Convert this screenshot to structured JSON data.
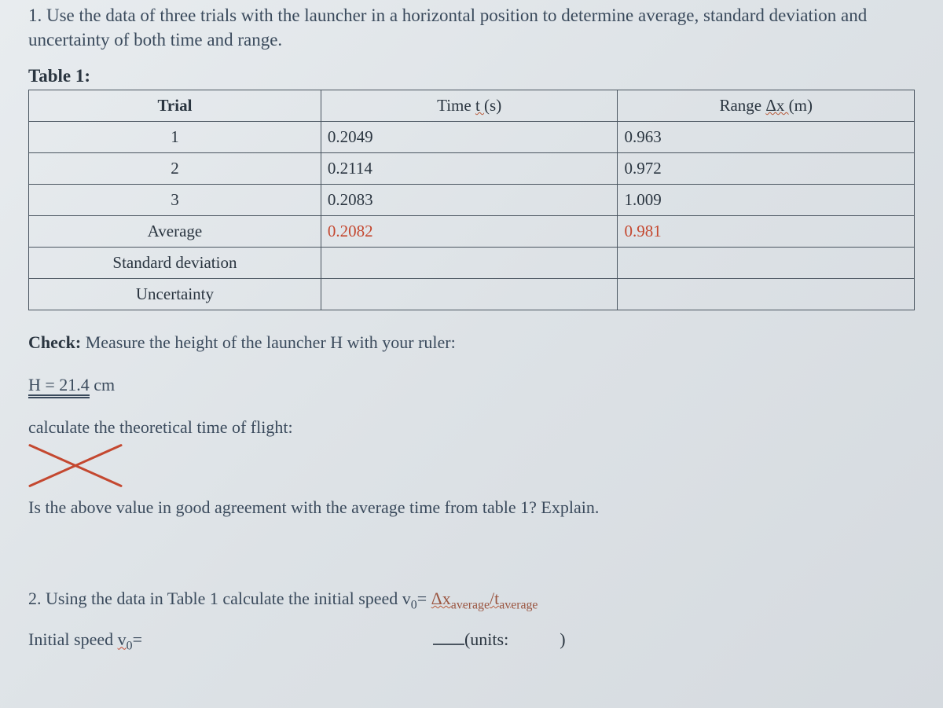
{
  "question1": "1. Use the data of three trials with the launcher in a horizontal position to determine average, standard deviation and uncertainty of both time and range.",
  "table": {
    "label": "Table 1:",
    "columns": {
      "trial": "Trial",
      "time_prefix": "Time ",
      "time_var": "t ",
      "time_unit": "(s)",
      "range_prefix": "Range ",
      "range_var": "Δx ",
      "range_unit": "(m)"
    },
    "rows": [
      {
        "label": "1",
        "time": "0.2049",
        "range": "0.963",
        "time_red": false,
        "range_red": false
      },
      {
        "label": "2",
        "time": "0.2114",
        "range": "0.972",
        "time_red": false,
        "range_red": false
      },
      {
        "label": "3",
        "time": "0.2083",
        "range": "1.009",
        "time_red": false,
        "range_red": false
      },
      {
        "label": "Average",
        "time": "0.2082",
        "range": "0.981",
        "time_red": true,
        "range_red": true
      },
      {
        "label": "Standard deviation",
        "time": "",
        "range": "",
        "time_red": false,
        "range_red": false
      },
      {
        "label": "Uncertainty",
        "time": "",
        "range": "",
        "time_red": false,
        "range_red": false
      }
    ],
    "col_widths": [
      "33%",
      "33.5%",
      "33.5%"
    ],
    "border_color": "#4a5560"
  },
  "check": {
    "bold": "Check:",
    "rest": " Measure the height of the launcher H with your ruler:"
  },
  "h_measure": {
    "prefix": "H = ",
    "value": "21.4",
    "unit": " cm"
  },
  "calc_line": "calculate the theoretical time of flight:",
  "x_mark_color": "#c44830",
  "agree_line": "Is the above value in good agreement with the average time from table 1? Explain.",
  "question2": {
    "prefix": "2. Using the data in Table 1 calculate the initial speed v",
    "sub0": "0",
    "eq": "= ",
    "frac_num": "Δx",
    "frac_num_sub": "average",
    "slash": "/",
    "frac_den": "t",
    "frac_den_sub": "average"
  },
  "initial_speed": {
    "label_pre": "Initial speed ",
    "label_var": "v",
    "label_sub": "0",
    "label_eq": "=",
    "units_label": "(units:",
    "close_paren": ")"
  },
  "colors": {
    "bg": "#d8dce0",
    "text_main": "#3a4a5c",
    "text_dark": "#2a3540",
    "red": "#c44830",
    "brown": "#9a5540"
  }
}
